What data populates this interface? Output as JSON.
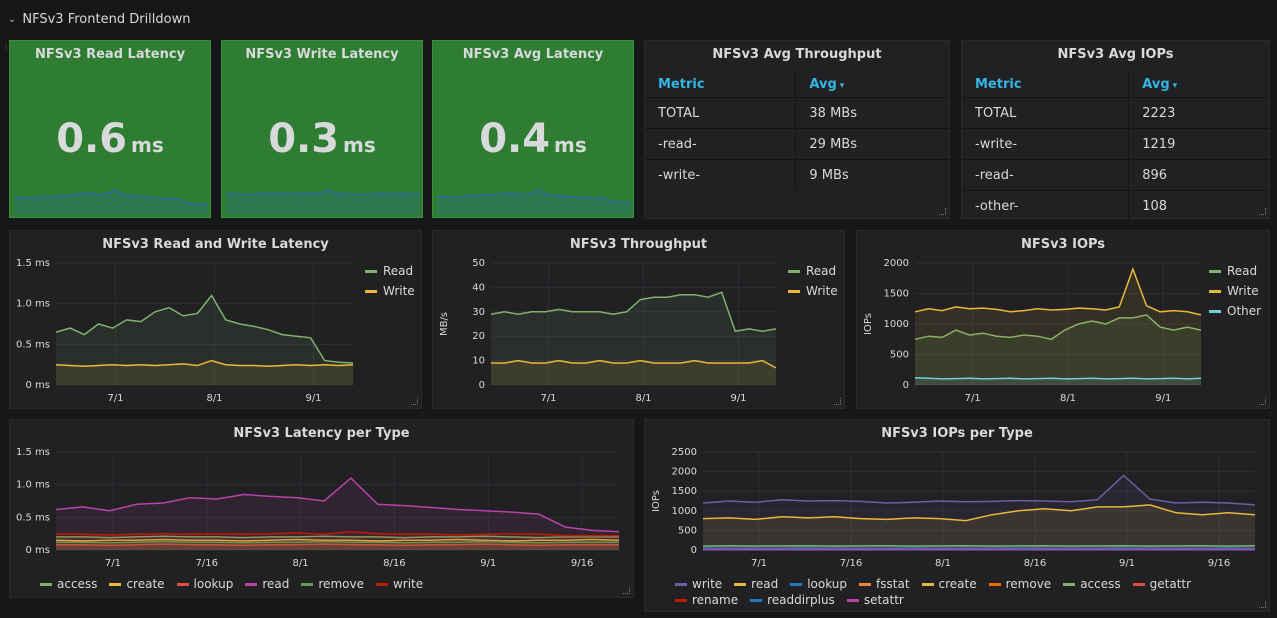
{
  "row_title": "NFSv3 Frontend Drilldown",
  "stats": [
    {
      "title": "NFSv3 Read Latency",
      "value": "0.6",
      "unit": "ms"
    },
    {
      "title": "NFSv3 Write Latency",
      "value": "0.3",
      "unit": "ms"
    },
    {
      "title": "NFSv3 Avg Latency",
      "value": "0.4",
      "unit": "ms"
    }
  ],
  "throughput_table": {
    "title": "NFSv3 Avg Throughput",
    "col_metric": "Metric",
    "col_avg": "Avg",
    "sort_icon": "▾",
    "rows": [
      {
        "metric": "TOTAL",
        "avg": "38 MBs"
      },
      {
        "metric": "-read-",
        "avg": "29 MBs"
      },
      {
        "metric": "-write-",
        "avg": "9 MBs"
      }
    ]
  },
  "iops_table": {
    "title": "NFSv3 Avg IOPs",
    "col_metric": "Metric",
    "col_avg": "Avg",
    "sort_icon": "▾",
    "rows": [
      {
        "metric": "TOTAL",
        "avg": "2223"
      },
      {
        "metric": "-write-",
        "avg": "1219"
      },
      {
        "metric": "-read-",
        "avg": "896"
      },
      {
        "metric": "-other-",
        "avg": "108"
      }
    ]
  },
  "colors": {
    "green": "#7eb26d",
    "yellow": "#eab839",
    "cyan": "#6ed0e0",
    "magenta": "#ba43a9",
    "purple": "#705da0",
    "orange": "#ef843c",
    "red": "#e24d42",
    "blue": "#1f78c1",
    "darkred": "#bf1b00",
    "lightgreen": "#629e51",
    "stat_blue": "#2a6ea6"
  },
  "chart_data": [
    {
      "id": "rw_latency",
      "type": "line",
      "title": "NFSv3 Read and Write Latency",
      "ylabel": "",
      "ylim": [
        0,
        1.5
      ],
      "yticks": [
        "0 ms",
        "0.5 ms",
        "1.0 ms",
        "1.5 ms"
      ],
      "xticks": [
        "7/1",
        "8/1",
        "9/1"
      ],
      "series": [
        {
          "name": "Read",
          "color": "#7eb26d",
          "values": [
            0.65,
            0.7,
            0.62,
            0.75,
            0.7,
            0.8,
            0.78,
            0.9,
            0.95,
            0.85,
            0.88,
            1.1,
            0.8,
            0.75,
            0.72,
            0.68,
            0.62,
            0.6,
            0.58,
            0.3,
            0.28,
            0.27
          ]
        },
        {
          "name": "Write",
          "color": "#eab839",
          "values": [
            0.25,
            0.24,
            0.23,
            0.24,
            0.25,
            0.24,
            0.25,
            0.24,
            0.25,
            0.26,
            0.24,
            0.3,
            0.25,
            0.24,
            0.24,
            0.23,
            0.24,
            0.25,
            0.24,
            0.25,
            0.24,
            0.25
          ]
        }
      ]
    },
    {
      "id": "throughput",
      "type": "line",
      "title": "NFSv3 Throughput",
      "ylabel": "MB/s",
      "ylim": [
        0,
        50
      ],
      "yticks": [
        "0",
        "10",
        "20",
        "30",
        "40",
        "50"
      ],
      "xticks": [
        "7/1",
        "8/1",
        "9/1"
      ],
      "series": [
        {
          "name": "Read",
          "color": "#7eb26d",
          "values": [
            29,
            30,
            29,
            30,
            30,
            31,
            30,
            30,
            30,
            29,
            30,
            35,
            36,
            36,
            37,
            37,
            36,
            38,
            22,
            23,
            22,
            23
          ]
        },
        {
          "name": "Write",
          "color": "#eab839",
          "values": [
            9,
            9,
            10,
            9,
            9,
            10,
            9,
            9,
            10,
            9,
            9,
            10,
            9,
            9,
            9,
            10,
            9,
            9,
            9,
            9,
            10,
            7
          ]
        }
      ]
    },
    {
      "id": "iops",
      "type": "line",
      "title": "NFSv3 IOPs",
      "ylabel": "IOPs",
      "ylim": [
        0,
        2000
      ],
      "yticks": [
        "0",
        "500",
        "1000",
        "1500",
        "2000"
      ],
      "xticks": [
        "7/1",
        "8/1",
        "9/1"
      ],
      "series": [
        {
          "name": "Read",
          "color": "#7eb26d",
          "values": [
            750,
            800,
            780,
            900,
            820,
            850,
            800,
            780,
            820,
            800,
            750,
            900,
            1000,
            1050,
            1000,
            1100,
            1100,
            1150,
            950,
            900,
            950,
            900
          ]
        },
        {
          "name": "Write",
          "color": "#eab839",
          "values": [
            1200,
            1250,
            1220,
            1280,
            1250,
            1260,
            1240,
            1200,
            1220,
            1250,
            1230,
            1240,
            1260,
            1250,
            1230,
            1280,
            1900,
            1300,
            1200,
            1220,
            1200,
            1150
          ]
        },
        {
          "name": "Other",
          "color": "#6ed0e0",
          "values": [
            120,
            110,
            100,
            105,
            110,
            100,
            105,
            110,
            100,
            105,
            110,
            100,
            105,
            110,
            100,
            105,
            110,
            100,
            105,
            110,
            100,
            110
          ]
        }
      ]
    },
    {
      "id": "latency_type",
      "type": "line",
      "title": "NFSv3 Latency per Type",
      "ylabel": "",
      "ylim": [
        0,
        1.5
      ],
      "yticks": [
        "0 ms",
        "0.5 ms",
        "1.0 ms",
        "1.5 ms"
      ],
      "xticks": [
        "7/1",
        "7/16",
        "8/1",
        "8/16",
        "9/1",
        "9/16"
      ],
      "series": [
        {
          "name": "access",
          "color": "#7eb26d",
          "values": [
            0.2,
            0.2,
            0.19,
            0.2,
            0.21,
            0.2,
            0.2,
            0.19,
            0.2,
            0.2,
            0.21,
            0.2,
            0.2,
            0.19,
            0.2,
            0.2,
            0.21,
            0.2,
            0.19,
            0.2,
            0.2,
            0.2
          ]
        },
        {
          "name": "create",
          "color": "#eab839",
          "values": [
            0.15,
            0.14,
            0.15,
            0.15,
            0.16,
            0.15,
            0.15,
            0.14,
            0.15,
            0.16,
            0.15,
            0.15,
            0.14,
            0.15,
            0.15,
            0.16,
            0.15,
            0.14,
            0.15,
            0.15,
            0.16,
            0.15
          ]
        },
        {
          "name": "lookup",
          "color": "#e24d42",
          "values": [
            0.08,
            0.08,
            0.07,
            0.08,
            0.09,
            0.08,
            0.08,
            0.07,
            0.08,
            0.08,
            0.09,
            0.08,
            0.08,
            0.07,
            0.08,
            0.08,
            0.09,
            0.08,
            0.07,
            0.08,
            0.08,
            0.08
          ]
        },
        {
          "name": "read",
          "color": "#ba43a9",
          "values": [
            0.62,
            0.66,
            0.6,
            0.7,
            0.72,
            0.8,
            0.78,
            0.85,
            0.82,
            0.8,
            0.75,
            1.1,
            0.7,
            0.68,
            0.65,
            0.62,
            0.6,
            0.58,
            0.55,
            0.35,
            0.3,
            0.28
          ]
        },
        {
          "name": "remove",
          "color": "#629e51",
          "values": [
            0.12,
            0.12,
            0.11,
            0.12,
            0.13,
            0.12,
            0.12,
            0.11,
            0.12,
            0.12,
            0.13,
            0.12,
            0.12,
            0.11,
            0.12,
            0.12,
            0.13,
            0.12,
            0.11,
            0.12,
            0.12,
            0.12
          ]
        },
        {
          "name": "write",
          "color": "#bf1b00",
          "values": [
            0.25,
            0.24,
            0.23,
            0.24,
            0.25,
            0.24,
            0.25,
            0.24,
            0.25,
            0.26,
            0.24,
            0.28,
            0.25,
            0.24,
            0.24,
            0.23,
            0.24,
            0.25,
            0.24,
            0.22,
            0.22,
            0.22
          ]
        }
      ]
    },
    {
      "id": "iops_type",
      "type": "line",
      "title": "NFSv3 IOPs per Type",
      "ylabel": "IOPs",
      "ylim": [
        0,
        2500
      ],
      "yticks": [
        "0",
        "500",
        "1000",
        "1500",
        "2000",
        "2500"
      ],
      "xticks": [
        "7/1",
        "7/16",
        "8/1",
        "8/16",
        "9/1",
        "9/16"
      ],
      "series": [
        {
          "name": "write",
          "color": "#705da0",
          "values": [
            1200,
            1250,
            1220,
            1280,
            1250,
            1260,
            1240,
            1200,
            1220,
            1250,
            1230,
            1240,
            1260,
            1250,
            1230,
            1280,
            1900,
            1300,
            1200,
            1220,
            1200,
            1150
          ]
        },
        {
          "name": "read",
          "color": "#eab839",
          "values": [
            800,
            820,
            780,
            850,
            820,
            850,
            800,
            780,
            820,
            800,
            750,
            900,
            1000,
            1050,
            1000,
            1100,
            1100,
            1150,
            950,
            900,
            950,
            900
          ]
        },
        {
          "name": "lookup",
          "color": "#1f78c1",
          "values": [
            50,
            45,
            40,
            45,
            50,
            45,
            40,
            45,
            50,
            45,
            40,
            45,
            50,
            45,
            40,
            45,
            50,
            45,
            40,
            45,
            50,
            45
          ]
        },
        {
          "name": "fsstat",
          "color": "#ef843c",
          "values": [
            20,
            20,
            20,
            20,
            20,
            20,
            20,
            20,
            20,
            20,
            20,
            20,
            20,
            20,
            20,
            20,
            20,
            20,
            20,
            20,
            20,
            20
          ]
        },
        {
          "name": "create",
          "color": "#eab839",
          "values": [
            15,
            15,
            15,
            15,
            15,
            15,
            15,
            15,
            15,
            15,
            15,
            15,
            15,
            15,
            15,
            15,
            15,
            15,
            15,
            15,
            15,
            15
          ]
        },
        {
          "name": "remove",
          "color": "#ef6c00",
          "values": [
            10,
            10,
            10,
            10,
            10,
            10,
            10,
            10,
            10,
            10,
            10,
            10,
            10,
            10,
            10,
            10,
            10,
            10,
            10,
            10,
            10,
            10
          ]
        },
        {
          "name": "access",
          "color": "#7eb26d",
          "values": [
            100,
            110,
            100,
            105,
            110,
            100,
            105,
            110,
            100,
            105,
            110,
            100,
            105,
            110,
            100,
            105,
            110,
            100,
            105,
            110,
            100,
            110
          ]
        },
        {
          "name": "getattr",
          "color": "#e24d42",
          "values": [
            30,
            30,
            30,
            30,
            30,
            30,
            30,
            30,
            30,
            30,
            30,
            30,
            30,
            30,
            30,
            30,
            30,
            30,
            30,
            30,
            30,
            30
          ]
        },
        {
          "name": "rename",
          "color": "#bf1b00",
          "values": [
            5,
            5,
            5,
            5,
            5,
            5,
            5,
            5,
            5,
            5,
            5,
            5,
            5,
            5,
            5,
            5,
            5,
            5,
            5,
            5,
            5,
            5
          ]
        },
        {
          "name": "readdirplus",
          "color": "#1f78c1",
          "values": [
            40,
            40,
            40,
            40,
            40,
            40,
            40,
            40,
            40,
            40,
            40,
            40,
            40,
            40,
            40,
            40,
            40,
            40,
            40,
            40,
            40,
            40
          ]
        },
        {
          "name": "setattr",
          "color": "#ba43a9",
          "values": [
            8,
            8,
            8,
            8,
            8,
            8,
            8,
            8,
            8,
            8,
            8,
            8,
            8,
            8,
            8,
            8,
            8,
            8,
            8,
            8,
            8,
            8
          ]
        }
      ]
    }
  ]
}
